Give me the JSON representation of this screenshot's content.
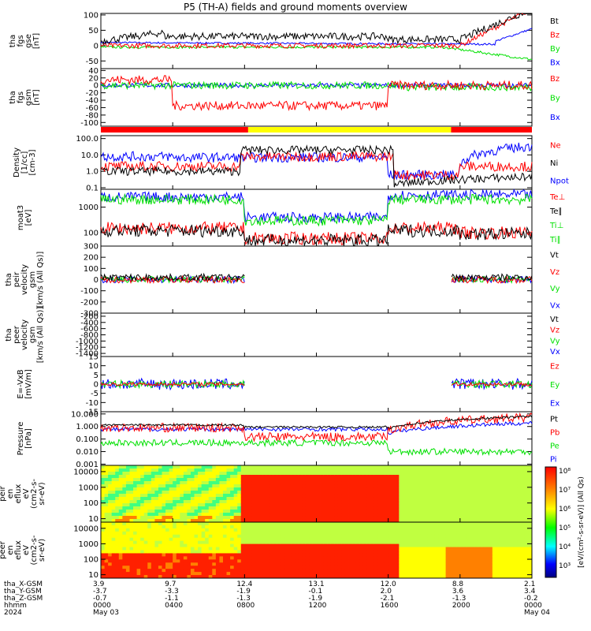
{
  "title": "P5 (TH-A) fields and ground moments overview",
  "colors": {
    "black": "#000000",
    "red": "#ff0000",
    "green": "#00e000",
    "blue": "#0000ff",
    "yellow": "#ffff00",
    "magenta": "#cc0000"
  },
  "chart_data": {
    "type": "line",
    "xaxis": {
      "ticks": [
        "0000",
        "0400",
        "0800",
        "1200",
        "1600",
        "2000",
        "0000"
      ],
      "x_hours": [
        0,
        4,
        8,
        12,
        16,
        20,
        24
      ],
      "row_labels": [
        "tha_X-GSM",
        "tha_Y-GSM",
        "tha_Z-GSM",
        "hhmm",
        "2024"
      ],
      "x_gsm": [
        "3.9",
        "9.7",
        "12.4",
        "13.1",
        "12.0",
        "8.8",
        "2.1"
      ],
      "y_gsm": [
        "-3.7",
        "-3.3",
        "-1.9",
        "-0.1",
        "2.0",
        "3.6",
        "3.4"
      ],
      "z_gsm": [
        "-0.7",
        "-1.1",
        "-1.3",
        "-1.9",
        "-2.1",
        "-1.3",
        "-0.2"
      ],
      "date_start": "May 03",
      "date_end": "May 04"
    },
    "panels": [
      {
        "id": "fgs_gse",
        "ylabel": [
          "tha",
          "fgs",
          "gse",
          "[nT]"
        ],
        "ytick_labels": [
          "100",
          "50",
          "0",
          "-50"
        ],
        "ytick_values": [
          100,
          50,
          0,
          -50
        ],
        "ylim": [
          -75,
          105
        ],
        "scale": "linear",
        "legend": [
          {
            "name": "Bt",
            "color": "#000000"
          },
          {
            "name": "Bz",
            "color": "#ff0000"
          },
          {
            "name": "By",
            "color": "#00e000"
          },
          {
            "name": "Bx",
            "color": "#0000ff"
          }
        ]
      },
      {
        "id": "fgs_gsm",
        "ylabel": [
          "tha",
          "fgs",
          "gsm",
          "[nT]"
        ],
        "ytick_labels": [
          "40",
          "20",
          "0",
          "-20",
          "-40",
          "-60",
          "-80",
          "-100"
        ],
        "ytick_values": [
          40,
          20,
          0,
          -20,
          -40,
          -60,
          -80,
          -100
        ],
        "ylim": [
          -110,
          45
        ],
        "scale": "linear",
        "legend": [
          {
            "name": "Bz",
            "color": "#ff0000"
          },
          {
            "name": "By",
            "color": "#00e000"
          },
          {
            "name": "Bx",
            "color": "#0000ff"
          }
        ]
      },
      {
        "id": "density",
        "ylabel": [
          "Density",
          "[1/cc]",
          "[cm-3]"
        ],
        "ytick_labels": [
          "100.0",
          "10.0",
          "1.0",
          "0.1"
        ],
        "ytick_values": [
          100,
          10,
          1,
          0.1
        ],
        "ylim": [
          0.08,
          150
        ],
        "scale": "log",
        "legend": [
          {
            "name": "Ne",
            "color": "#ff0000"
          },
          {
            "name": "Ni",
            "color": "#000000"
          },
          {
            "name": "Npot",
            "color": "#0000ff"
          }
        ]
      },
      {
        "id": "temperature",
        "ylabel": [
          "moat3",
          "[eV]"
        ],
        "ytick_labels": [
          "1000",
          "100"
        ],
        "ytick_values": [
          1000,
          100
        ],
        "ylim": [
          30,
          5000
        ],
        "scale": "log",
        "legend": [
          {
            "name": "Te⊥",
            "color": "#ff0000"
          },
          {
            "name": "Te∥",
            "color": "#000000"
          },
          {
            "name": "Ti⊥",
            "color": "#00e000"
          },
          {
            "name": "Ti∥",
            "color": "#00e000"
          }
        ]
      },
      {
        "id": "peir_velocity",
        "ylabel": [
          "tha",
          "peir",
          "velocity",
          "gsm",
          "[km/s (All Qs)]"
        ],
        "ytick_labels": [
          "300",
          "200",
          "100",
          "0",
          "-100",
          "-200",
          "-300"
        ],
        "ytick_values": [
          300,
          200,
          100,
          0,
          -100,
          -200,
          -300
        ],
        "ylim": [
          -300,
          300
        ],
        "scale": "linear",
        "legend": [
          {
            "name": "Vt",
            "color": "#000000"
          },
          {
            "name": "Vz",
            "color": "#ff0000"
          },
          {
            "name": "Vy",
            "color": "#00e000"
          },
          {
            "name": "Vx",
            "color": "#0000ff"
          }
        ]
      },
      {
        "id": "peer_velocity",
        "ylabel": [
          "tha",
          "peer",
          "velocity",
          "gsm",
          "[km/s (All Qs)]"
        ],
        "ytick_labels": [
          "-200",
          "-400",
          "-600",
          "-800",
          "-1000",
          "-1200",
          "-1400"
        ],
        "ytick_values": [
          -200,
          -400,
          -600,
          -800,
          -1000,
          -1200,
          -1400
        ],
        "ylim": [
          -1500,
          -100
        ],
        "scale": "linear",
        "legend": [
          {
            "name": "Vt",
            "color": "#000000"
          },
          {
            "name": "Vz",
            "color": "#ff0000"
          },
          {
            "name": "Vy",
            "color": "#00e000"
          },
          {
            "name": "Vx",
            "color": "#0000ff"
          }
        ]
      },
      {
        "id": "efield",
        "ylabel": [
          "E=-VxB",
          "[mV/m]"
        ],
        "ytick_labels": [
          "15",
          "10",
          "5",
          "0",
          "-5",
          "-10",
          "-15"
        ],
        "ytick_values": [
          15,
          10,
          5,
          0,
          -5,
          -10,
          -15
        ],
        "ylim": [
          -15,
          15
        ],
        "scale": "linear",
        "legend": [
          {
            "name": "Ez",
            "color": "#ff0000"
          },
          {
            "name": "Ey",
            "color": "#00e000"
          },
          {
            "name": "Ex",
            "color": "#0000ff"
          }
        ]
      },
      {
        "id": "pressure",
        "ylabel": [
          "Pressure",
          "[nPa]"
        ],
        "ytick_labels": [
          "10.000",
          "1.000",
          "0.100",
          "0.010",
          "0.001"
        ],
        "ytick_values": [
          10,
          1,
          0.1,
          0.01,
          0.001
        ],
        "ylim": [
          0.0008,
          15
        ],
        "scale": "log",
        "legend": [
          {
            "name": "Pt",
            "color": "#000000"
          },
          {
            "name": "Pb",
            "color": "#ff0000"
          },
          {
            "name": "Pe",
            "color": "#00e000"
          },
          {
            "name": "Pi",
            "color": "#0000ff"
          }
        ]
      },
      {
        "id": "peir_eflux",
        "ylabel": [
          "tha",
          "peir",
          "en",
          "eflux",
          "eV",
          "(cm2-s-",
          "sr-eV)"
        ],
        "ytick_labels": [
          "10000",
          "1000",
          "100",
          "10"
        ],
        "ytick_values": [
          10000,
          1000,
          100,
          10
        ],
        "ylim": [
          6,
          25000
        ],
        "scale": "log",
        "spectrogram": true
      },
      {
        "id": "peer_eflux",
        "ylabel": [
          "tha",
          "peer",
          "en",
          "eflux",
          "eV",
          "(cm2-s-",
          "sr-eV)"
        ],
        "ytick_labels": [
          "10000",
          "1000",
          "100",
          "10"
        ],
        "ytick_values": [
          10000,
          1000,
          100,
          10
        ],
        "ylim": [
          6,
          25000
        ],
        "scale": "log",
        "spectrogram": true
      }
    ],
    "colorbar": {
      "tick_labels": [
        "10⁸",
        "10⁷",
        "10⁶",
        "10⁵",
        "10⁴",
        "10³"
      ],
      "label": "[eV/(cm²-s-sr-eV)] (All Qs)"
    }
  }
}
